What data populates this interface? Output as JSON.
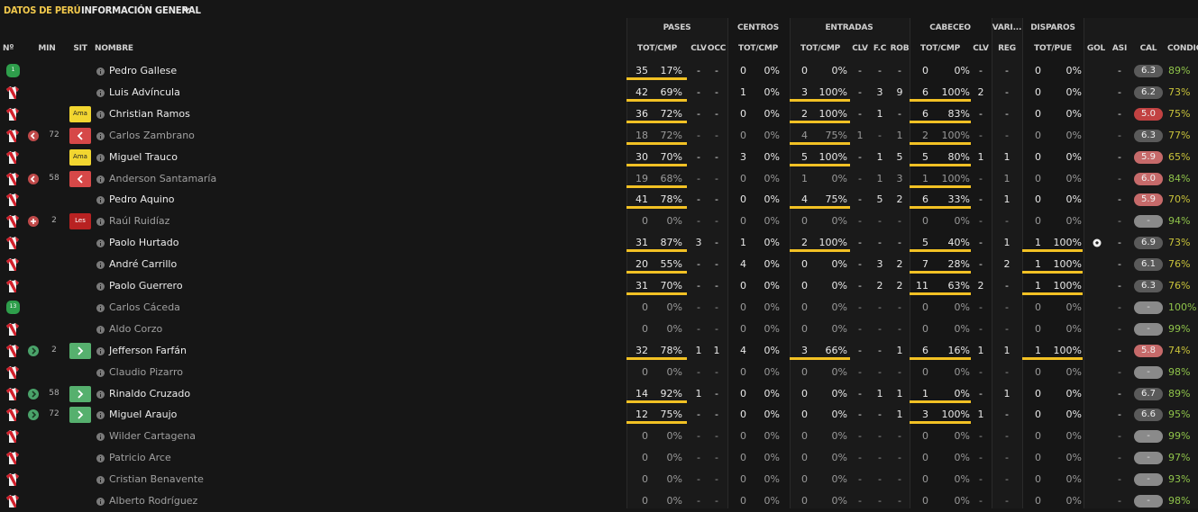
{
  "header": {
    "title": "DATOS DE PERÚ",
    "view_menu": "INFORMACIÓN GENERAL"
  },
  "groups": {
    "pases": "PASES",
    "centros": "CENTROS",
    "entradas": "ENTRADAS",
    "cabeceo": "CABECEO",
    "varios": "VARI...",
    "disparos": "DISPAROS"
  },
  "columns": {
    "num": "Nº",
    "min": "MIN",
    "sit": "SIT",
    "nombre": "NOMBRE",
    "pases_tot": "TOT/CMP",
    "pases_clv": "CLV",
    "pases_occ": "OCC",
    "centros_tot": "TOT/CMP",
    "entradas_tot": "TOT/CMP",
    "entradas_clv": "CLV",
    "entradas_fc": "F.C",
    "entradas_rob": "ROB",
    "cabeceo_tot": "TOT/CMP",
    "cabeceo_clv": "CLV",
    "varios_reg": "REG",
    "disparos_tot": "TOT/PUE",
    "gol": "GOL",
    "asi": "ASI",
    "cal": "CAL",
    "cond": "CONDIC"
  },
  "players": [
    {
      "shirt": "gk",
      "num": "1",
      "event": "",
      "min": "",
      "sit": "",
      "sitlabel": "",
      "name": "Pedro Gallese",
      "on": true,
      "pases": [
        "35",
        "17%"
      ],
      "pclv": "-",
      "pocc": "-",
      "centros": [
        "0",
        "0%"
      ],
      "entradas": [
        "0",
        "0%"
      ],
      "eclv": "-",
      "efc": "-",
      "erob": "-",
      "cabeceo": [
        "0",
        "0%"
      ],
      "cclv": "-",
      "reg": "-",
      "disparos": [
        "0",
        "0%"
      ],
      "gol": "",
      "asi": "-",
      "cal": "6.3",
      "calcolor": "gray",
      "cond": "89%",
      "condcolor": "g",
      "pbar": 0.17,
      "ebar": 0,
      "cbar": 0,
      "dbar": 0
    },
    {
      "shirt": "field",
      "num": "",
      "event": "",
      "min": "",
      "sit": "",
      "sitlabel": "",
      "name": "Luis Advíncula",
      "on": true,
      "pases": [
        "42",
        "69%"
      ],
      "pclv": "-",
      "pocc": "-",
      "centros": [
        "1",
        "0%"
      ],
      "entradas": [
        "3",
        "100%"
      ],
      "eclv": "-",
      "efc": "3",
      "erob": "9",
      "cabeceo": [
        "6",
        "100%"
      ],
      "cclv": "2",
      "reg": "-",
      "disparos": [
        "0",
        "0%"
      ],
      "gol": "",
      "asi": "-",
      "cal": "6.2",
      "calcolor": "gray",
      "cond": "73%",
      "condcolor": "y",
      "pbar": 0.69,
      "ebar": 1,
      "cbar": 1,
      "dbar": 0
    },
    {
      "shirt": "field",
      "num": "",
      "event": "",
      "min": "",
      "sit": "ama",
      "sitlabel": "Ama",
      "name": "Christian Ramos",
      "on": true,
      "pases": [
        "36",
        "72%"
      ],
      "pclv": "-",
      "pocc": "-",
      "centros": [
        "0",
        "0%"
      ],
      "entradas": [
        "2",
        "100%"
      ],
      "eclv": "-",
      "efc": "1",
      "erob": "-",
      "cabeceo": [
        "6",
        "83%"
      ],
      "cclv": "-",
      "reg": "-",
      "disparos": [
        "0",
        "0%"
      ],
      "gol": "",
      "asi": "-",
      "cal": "5.0",
      "calcolor": "red",
      "cond": "75%",
      "condcolor": "y",
      "pbar": 0.72,
      "ebar": 1,
      "cbar": 0.83,
      "dbar": 0
    },
    {
      "shirt": "field",
      "num": "",
      "event": "out",
      "min": "72",
      "sit": "subout",
      "sitlabel": "",
      "name": "Carlos Zambrano",
      "on": false,
      "pases": [
        "18",
        "72%"
      ],
      "pclv": "-",
      "pocc": "-",
      "centros": [
        "0",
        "0%"
      ],
      "entradas": [
        "4",
        "75%"
      ],
      "eclv": "1",
      "efc": "-",
      "erob": "1",
      "cabeceo": [
        "2",
        "100%"
      ],
      "cclv": "-",
      "reg": "-",
      "disparos": [
        "0",
        "0%"
      ],
      "gol": "",
      "asi": "-",
      "cal": "6.3",
      "calcolor": "gray",
      "cond": "77%",
      "condcolor": "y",
      "pbar": 0.72,
      "ebar": 0.75,
      "cbar": 1,
      "dbar": 0
    },
    {
      "shirt": "field",
      "num": "",
      "event": "",
      "min": "",
      "sit": "ama",
      "sitlabel": "Ama",
      "name": "Miguel Trauco",
      "on": true,
      "pases": [
        "30",
        "70%"
      ],
      "pclv": "-",
      "pocc": "-",
      "centros": [
        "3",
        "0%"
      ],
      "entradas": [
        "5",
        "100%"
      ],
      "eclv": "-",
      "efc": "1",
      "erob": "5",
      "cabeceo": [
        "5",
        "80%"
      ],
      "cclv": "1",
      "reg": "1",
      "disparos": [
        "0",
        "0%"
      ],
      "gol": "",
      "asi": "-",
      "cal": "5.9",
      "calcolor": "pink",
      "cond": "65%",
      "condcolor": "y",
      "pbar": 0.7,
      "ebar": 1,
      "cbar": 0.8,
      "dbar": 0
    },
    {
      "shirt": "field",
      "num": "",
      "event": "out",
      "min": "58",
      "sit": "subout",
      "sitlabel": "",
      "name": "Anderson Santamaría",
      "on": false,
      "pases": [
        "19",
        "68%"
      ],
      "pclv": "-",
      "pocc": "-",
      "centros": [
        "0",
        "0%"
      ],
      "entradas": [
        "1",
        "0%"
      ],
      "eclv": "-",
      "efc": "1",
      "erob": "3",
      "cabeceo": [
        "1",
        "100%"
      ],
      "cclv": "-",
      "reg": "1",
      "disparos": [
        "0",
        "0%"
      ],
      "gol": "",
      "asi": "-",
      "cal": "6.0",
      "calcolor": "pink",
      "cond": "84%",
      "condcolor": "g",
      "pbar": 0.68,
      "ebar": 0,
      "cbar": 1,
      "dbar": 0
    },
    {
      "shirt": "field",
      "num": "",
      "event": "",
      "min": "",
      "sit": "",
      "sitlabel": "",
      "name": "Pedro Aquino",
      "on": true,
      "pases": [
        "41",
        "78%"
      ],
      "pclv": "-",
      "pocc": "-",
      "centros": [
        "0",
        "0%"
      ],
      "entradas": [
        "4",
        "75%"
      ],
      "eclv": "-",
      "efc": "5",
      "erob": "2",
      "cabeceo": [
        "6",
        "33%"
      ],
      "cclv": "-",
      "reg": "1",
      "disparos": [
        "0",
        "0%"
      ],
      "gol": "",
      "asi": "-",
      "cal": "5.9",
      "calcolor": "pink",
      "cond": "70%",
      "condcolor": "y",
      "pbar": 0.78,
      "ebar": 0.75,
      "cbar": 0.33,
      "dbar": 0
    },
    {
      "shirt": "field",
      "num": "",
      "event": "inj",
      "min": "2",
      "sit": "les",
      "sitlabel": "Les",
      "name": "Raúl Ruidíaz",
      "on": false,
      "pases": [
        "0",
        "0%"
      ],
      "pclv": "-",
      "pocc": "-",
      "centros": [
        "0",
        "0%"
      ],
      "entradas": [
        "0",
        "0%"
      ],
      "eclv": "-",
      "efc": "-",
      "erob": "-",
      "cabeceo": [
        "0",
        "0%"
      ],
      "cclv": "-",
      "reg": "-",
      "disparos": [
        "0",
        "0%"
      ],
      "gol": "",
      "asi": "-",
      "cal": "-",
      "calcolor": "empty",
      "cond": "94%",
      "condcolor": "g",
      "pbar": 0,
      "ebar": 0,
      "cbar": 0,
      "dbar": 0
    },
    {
      "shirt": "field",
      "num": "",
      "event": "",
      "min": "",
      "sit": "",
      "sitlabel": "",
      "name": "Paolo Hurtado",
      "on": true,
      "pases": [
        "31",
        "87%"
      ],
      "pclv": "3",
      "pocc": "-",
      "centros": [
        "1",
        "0%"
      ],
      "entradas": [
        "2",
        "100%"
      ],
      "eclv": "-",
      "efc": "-",
      "erob": "-",
      "cabeceo": [
        "5",
        "40%"
      ],
      "cclv": "-",
      "reg": "1",
      "disparos": [
        "1",
        "100%"
      ],
      "gol": "ball",
      "asi": "-",
      "cal": "6.9",
      "calcolor": "gray",
      "cond": "73%",
      "condcolor": "y",
      "pbar": 0.87,
      "ebar": 1,
      "cbar": 0.4,
      "dbar": 1
    },
    {
      "shirt": "field",
      "num": "",
      "event": "",
      "min": "",
      "sit": "",
      "sitlabel": "",
      "name": "André Carrillo",
      "on": true,
      "pases": [
        "20",
        "55%"
      ],
      "pclv": "-",
      "pocc": "-",
      "centros": [
        "4",
        "0%"
      ],
      "entradas": [
        "0",
        "0%"
      ],
      "eclv": "-",
      "efc": "3",
      "erob": "2",
      "cabeceo": [
        "7",
        "28%"
      ],
      "cclv": "-",
      "reg": "2",
      "disparos": [
        "1",
        "100%"
      ],
      "gol": "",
      "asi": "-",
      "cal": "6.1",
      "calcolor": "gray",
      "cond": "76%",
      "condcolor": "y",
      "pbar": 0.55,
      "ebar": 0,
      "cbar": 0.28,
      "dbar": 1
    },
    {
      "shirt": "field",
      "num": "",
      "event": "",
      "min": "",
      "sit": "",
      "sitlabel": "",
      "name": "Paolo Guerrero",
      "on": true,
      "pases": [
        "31",
        "70%"
      ],
      "pclv": "-",
      "pocc": "-",
      "centros": [
        "0",
        "0%"
      ],
      "entradas": [
        "0",
        "0%"
      ],
      "eclv": "-",
      "efc": "2",
      "erob": "2",
      "cabeceo": [
        "11",
        "63%"
      ],
      "cclv": "2",
      "reg": "-",
      "disparos": [
        "1",
        "100%"
      ],
      "gol": "",
      "asi": "-",
      "cal": "6.3",
      "calcolor": "gray",
      "cond": "76%",
      "condcolor": "y",
      "pbar": 0.7,
      "ebar": 0,
      "cbar": 0.63,
      "dbar": 1
    },
    {
      "shirt": "gk",
      "num": "13",
      "event": "",
      "min": "",
      "sit": "",
      "sitlabel": "",
      "name": "Carlos Cáceda",
      "on": false,
      "pases": [
        "0",
        "0%"
      ],
      "pclv": "-",
      "pocc": "-",
      "centros": [
        "0",
        "0%"
      ],
      "entradas": [
        "0",
        "0%"
      ],
      "eclv": "-",
      "efc": "-",
      "erob": "-",
      "cabeceo": [
        "0",
        "0%"
      ],
      "cclv": "-",
      "reg": "-",
      "disparos": [
        "0",
        "0%"
      ],
      "gol": "",
      "asi": "-",
      "cal": "-",
      "calcolor": "empty",
      "cond": "100%",
      "condcolor": "g",
      "pbar": 0,
      "ebar": 0,
      "cbar": 0,
      "dbar": 0
    },
    {
      "shirt": "field",
      "num": "",
      "event": "",
      "min": "",
      "sit": "",
      "sitlabel": "",
      "name": "Aldo Corzo",
      "on": false,
      "pases": [
        "0",
        "0%"
      ],
      "pclv": "-",
      "pocc": "-",
      "centros": [
        "0",
        "0%"
      ],
      "entradas": [
        "0",
        "0%"
      ],
      "eclv": "-",
      "efc": "-",
      "erob": "-",
      "cabeceo": [
        "0",
        "0%"
      ],
      "cclv": "-",
      "reg": "-",
      "disparos": [
        "0",
        "0%"
      ],
      "gol": "",
      "asi": "-",
      "cal": "-",
      "calcolor": "empty",
      "cond": "99%",
      "condcolor": "g",
      "pbar": 0,
      "ebar": 0,
      "cbar": 0,
      "dbar": 0
    },
    {
      "shirt": "field",
      "num": "",
      "event": "in",
      "min": "2",
      "sit": "subin",
      "sitlabel": "",
      "name": "Jefferson Farfán",
      "on": true,
      "pases": [
        "32",
        "78%"
      ],
      "pclv": "1",
      "pocc": "1",
      "centros": [
        "4",
        "0%"
      ],
      "entradas": [
        "3",
        "66%"
      ],
      "eclv": "-",
      "efc": "-",
      "erob": "1",
      "cabeceo": [
        "6",
        "16%"
      ],
      "cclv": "1",
      "reg": "1",
      "disparos": [
        "1",
        "100%"
      ],
      "gol": "",
      "asi": "-",
      "cal": "5.8",
      "calcolor": "pink",
      "cond": "74%",
      "condcolor": "y",
      "pbar": 0.78,
      "ebar": 0.66,
      "cbar": 0.16,
      "dbar": 1
    },
    {
      "shirt": "field",
      "num": "",
      "event": "",
      "min": "",
      "sit": "",
      "sitlabel": "",
      "name": "Claudio Pizarro",
      "on": false,
      "pases": [
        "0",
        "0%"
      ],
      "pclv": "-",
      "pocc": "-",
      "centros": [
        "0",
        "0%"
      ],
      "entradas": [
        "0",
        "0%"
      ],
      "eclv": "-",
      "efc": "-",
      "erob": "-",
      "cabeceo": [
        "0",
        "0%"
      ],
      "cclv": "-",
      "reg": "-",
      "disparos": [
        "0",
        "0%"
      ],
      "gol": "",
      "asi": "-",
      "cal": "-",
      "calcolor": "empty",
      "cond": "98%",
      "condcolor": "g",
      "pbar": 0,
      "ebar": 0,
      "cbar": 0,
      "dbar": 0
    },
    {
      "shirt": "field",
      "num": "",
      "event": "in",
      "min": "58",
      "sit": "subin",
      "sitlabel": "",
      "name": "Rinaldo Cruzado",
      "on": true,
      "pases": [
        "14",
        "92%"
      ],
      "pclv": "1",
      "pocc": "-",
      "centros": [
        "0",
        "0%"
      ],
      "entradas": [
        "0",
        "0%"
      ],
      "eclv": "-",
      "efc": "1",
      "erob": "1",
      "cabeceo": [
        "1",
        "0%"
      ],
      "cclv": "-",
      "reg": "1",
      "disparos": [
        "0",
        "0%"
      ],
      "gol": "",
      "asi": "-",
      "cal": "6.7",
      "calcolor": "gray",
      "cond": "89%",
      "condcolor": "g",
      "pbar": 0.92,
      "ebar": 0,
      "cbar": 0,
      "dbar": 0
    },
    {
      "shirt": "field",
      "num": "",
      "event": "in",
      "min": "72",
      "sit": "subin",
      "sitlabel": "",
      "name": "Miguel Araujo",
      "on": true,
      "pases": [
        "12",
        "75%"
      ],
      "pclv": "-",
      "pocc": "-",
      "centros": [
        "0",
        "0%"
      ],
      "entradas": [
        "0",
        "0%"
      ],
      "eclv": "-",
      "efc": "-",
      "erob": "1",
      "cabeceo": [
        "3",
        "100%"
      ],
      "cclv": "1",
      "reg": "-",
      "disparos": [
        "0",
        "0%"
      ],
      "gol": "",
      "asi": "-",
      "cal": "6.6",
      "calcolor": "gray",
      "cond": "95%",
      "condcolor": "g",
      "pbar": 0.75,
      "ebar": 0,
      "cbar": 1,
      "dbar": 0
    },
    {
      "shirt": "field",
      "num": "",
      "event": "",
      "min": "",
      "sit": "",
      "sitlabel": "",
      "name": "Wilder Cartagena",
      "on": false,
      "pases": [
        "0",
        "0%"
      ],
      "pclv": "-",
      "pocc": "-",
      "centros": [
        "0",
        "0%"
      ],
      "entradas": [
        "0",
        "0%"
      ],
      "eclv": "-",
      "efc": "-",
      "erob": "-",
      "cabeceo": [
        "0",
        "0%"
      ],
      "cclv": "-",
      "reg": "-",
      "disparos": [
        "0",
        "0%"
      ],
      "gol": "",
      "asi": "-",
      "cal": "-",
      "calcolor": "empty",
      "cond": "99%",
      "condcolor": "g",
      "pbar": 0,
      "ebar": 0,
      "cbar": 0,
      "dbar": 0
    },
    {
      "shirt": "field",
      "num": "",
      "event": "",
      "min": "",
      "sit": "",
      "sitlabel": "",
      "name": "Patricio Arce",
      "on": false,
      "pases": [
        "0",
        "0%"
      ],
      "pclv": "-",
      "pocc": "-",
      "centros": [
        "0",
        "0%"
      ],
      "entradas": [
        "0",
        "0%"
      ],
      "eclv": "-",
      "efc": "-",
      "erob": "-",
      "cabeceo": [
        "0",
        "0%"
      ],
      "cclv": "-",
      "reg": "-",
      "disparos": [
        "0",
        "0%"
      ],
      "gol": "",
      "asi": "-",
      "cal": "-",
      "calcolor": "empty",
      "cond": "97%",
      "condcolor": "g",
      "pbar": 0,
      "ebar": 0,
      "cbar": 0,
      "dbar": 0
    },
    {
      "shirt": "field",
      "num": "",
      "event": "",
      "min": "",
      "sit": "",
      "sitlabel": "",
      "name": "Cristian Benavente",
      "on": false,
      "pases": [
        "0",
        "0%"
      ],
      "pclv": "-",
      "pocc": "-",
      "centros": [
        "0",
        "0%"
      ],
      "entradas": [
        "0",
        "0%"
      ],
      "eclv": "-",
      "efc": "-",
      "erob": "-",
      "cabeceo": [
        "0",
        "0%"
      ],
      "cclv": "-",
      "reg": "-",
      "disparos": [
        "0",
        "0%"
      ],
      "gol": "",
      "asi": "-",
      "cal": "-",
      "calcolor": "empty",
      "cond": "93%",
      "condcolor": "g",
      "pbar": 0,
      "ebar": 0,
      "cbar": 0,
      "dbar": 0
    },
    {
      "shirt": "field",
      "num": "",
      "event": "",
      "min": "",
      "sit": "",
      "sitlabel": "",
      "name": "Alberto Rodríguez",
      "on": false,
      "pases": [
        "0",
        "0%"
      ],
      "pclv": "-",
      "pocc": "-",
      "centros": [
        "0",
        "0%"
      ],
      "entradas": [
        "0",
        "0%"
      ],
      "eclv": "-",
      "efc": "-",
      "erob": "-",
      "cabeceo": [
        "0",
        "0%"
      ],
      "cclv": "-",
      "reg": "-",
      "disparos": [
        "0",
        "0%"
      ],
      "gol": "",
      "asi": "-",
      "cal": "-",
      "calcolor": "empty",
      "cond": "98%",
      "condcolor": "g",
      "pbar": 0,
      "ebar": 0,
      "cbar": 0,
      "dbar": 0
    }
  ]
}
